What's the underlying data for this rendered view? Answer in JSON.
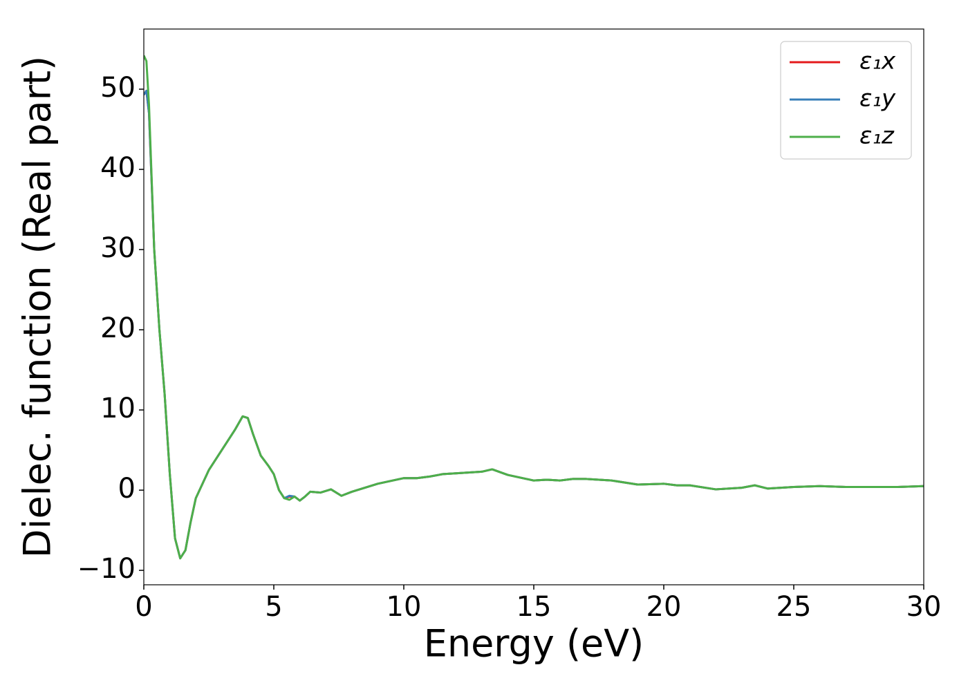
{
  "chart_data": {
    "type": "line",
    "xlabel": "Energy (eV)",
    "ylabel": "Dielec. function (Real part)",
    "x": [
      0,
      0.1,
      0.2,
      0.4,
      0.6,
      0.8,
      1.0,
      1.2,
      1.4,
      1.6,
      1.8,
      2.0,
      2.5,
      3.0,
      3.5,
      3.8,
      4.0,
      4.2,
      4.5,
      4.8,
      5.0,
      5.2,
      5.4,
      5.6,
      5.8,
      6.0,
      6.2,
      6.4,
      6.8,
      7.2,
      7.6,
      8.0,
      9,
      10,
      10.5,
      11,
      11.5,
      12,
      13,
      13.4,
      14,
      15,
      15.5,
      16,
      16.5,
      17,
      18,
      19,
      20,
      20.5,
      21,
      22,
      23,
      23.5,
      24,
      25,
      26,
      27,
      28,
      29,
      30
    ],
    "series": [
      {
        "name": "ε₁x",
        "color": "#e41a1c",
        "values": [
          49.3,
          49.8,
          47,
          30,
          20,
          12,
          2,
          -6,
          -8.5,
          -7.5,
          -4,
          -1,
          2.5,
          5,
          7.5,
          9.2,
          9,
          7,
          4.3,
          3,
          2,
          0,
          -1,
          -0.8,
          -0.8,
          -1.3,
          -0.8,
          -0.2,
          -0.3,
          0.1,
          -0.7,
          -0.2,
          0.8,
          1.5,
          1.5,
          1.7,
          2,
          2.1,
          2.3,
          2.6,
          1.9,
          1.2,
          1.3,
          1.2,
          1.4,
          1.4,
          1.2,
          0.7,
          0.8,
          0.6,
          0.6,
          0.1,
          0.3,
          0.6,
          0.2,
          0.4,
          0.5,
          0.4,
          0.4,
          0.4,
          0.5
        ]
      },
      {
        "name": "ε₁y",
        "color": "#377eb8",
        "values": [
          49.3,
          49.8,
          47,
          30,
          20,
          12,
          2,
          -6,
          -8.5,
          -7.5,
          -4,
          -1,
          2.5,
          5,
          7.5,
          9.2,
          9,
          7,
          4.3,
          3,
          2,
          0,
          -1,
          -0.7,
          -0.8,
          -1.3,
          -0.8,
          -0.2,
          -0.3,
          0.1,
          -0.7,
          -0.2,
          0.8,
          1.5,
          1.5,
          1.7,
          2,
          2.1,
          2.3,
          2.6,
          1.9,
          1.2,
          1.3,
          1.2,
          1.4,
          1.4,
          1.2,
          0.7,
          0.8,
          0.6,
          0.6,
          0.1,
          0.3,
          0.6,
          0.2,
          0.4,
          0.5,
          0.4,
          0.4,
          0.4,
          0.5
        ]
      },
      {
        "name": "ε₁z",
        "color": "#4daf4a",
        "values": [
          54.2,
          53.5,
          48,
          30,
          20,
          12,
          2,
          -6,
          -8.5,
          -7.5,
          -4,
          -1,
          2.5,
          5,
          7.5,
          9.2,
          9,
          7,
          4.3,
          3,
          2,
          0,
          -1,
          -1.2,
          -0.8,
          -1.3,
          -0.8,
          -0.2,
          -0.3,
          0.1,
          -0.7,
          -0.2,
          0.8,
          1.5,
          1.5,
          1.7,
          2,
          2.1,
          2.3,
          2.6,
          1.9,
          1.2,
          1.3,
          1.2,
          1.4,
          1.4,
          1.2,
          0.7,
          0.8,
          0.6,
          0.6,
          0.1,
          0.3,
          0.6,
          0.2,
          0.4,
          0.5,
          0.4,
          0.4,
          0.4,
          0.5
        ]
      }
    ],
    "xlim": [
      0,
      30
    ],
    "xticks": [
      0,
      5,
      10,
      15,
      20,
      25,
      30
    ],
    "ylim": [
      -11.8,
      57.5
    ],
    "yticks": [
      {
        "value": -10,
        "label": "−10"
      },
      0,
      10,
      20,
      30,
      40,
      50
    ],
    "grid": false,
    "legend": "upper right"
  }
}
